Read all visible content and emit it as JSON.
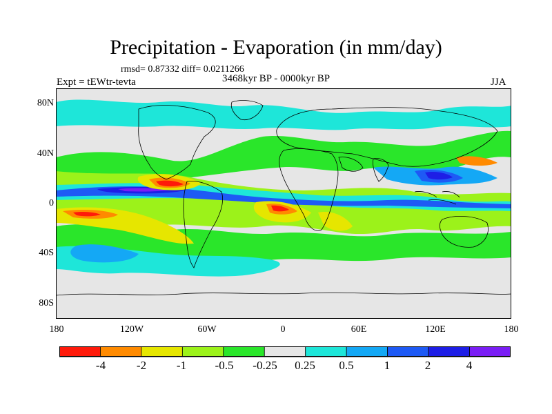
{
  "title": "Precipitation - Evaporation (in mm/day)",
  "stats": "rmsd= 0.87332  diff= 0.0211266",
  "experiment": "Expt = tEWtr-tevta",
  "period": "3468kyr BP - 0000kyr BP",
  "season": "JJA",
  "axes": {
    "y_ticks": [
      "80N",
      "40N",
      "0",
      "40S",
      "80S"
    ],
    "x_ticks": [
      "180",
      "120W",
      "60W",
      "0",
      "60E",
      "120E",
      "180"
    ]
  },
  "colorbar": {
    "colors": [
      "#ff1a0a",
      "#ff8a00",
      "#e6e600",
      "#9cf21a",
      "#2ae62a",
      "#e6e6e6",
      "#1ee6d9",
      "#14a8f5",
      "#1e5af5",
      "#1e1ee6",
      "#7a1ef5"
    ],
    "labels": [
      "-4",
      "-2",
      "-1",
      "-0.5",
      "-0.25",
      "0.25",
      "0.5",
      "1",
      "2",
      "4"
    ]
  },
  "colors": {
    "background": "#e6e6e6",
    "coast": "#000000"
  }
}
